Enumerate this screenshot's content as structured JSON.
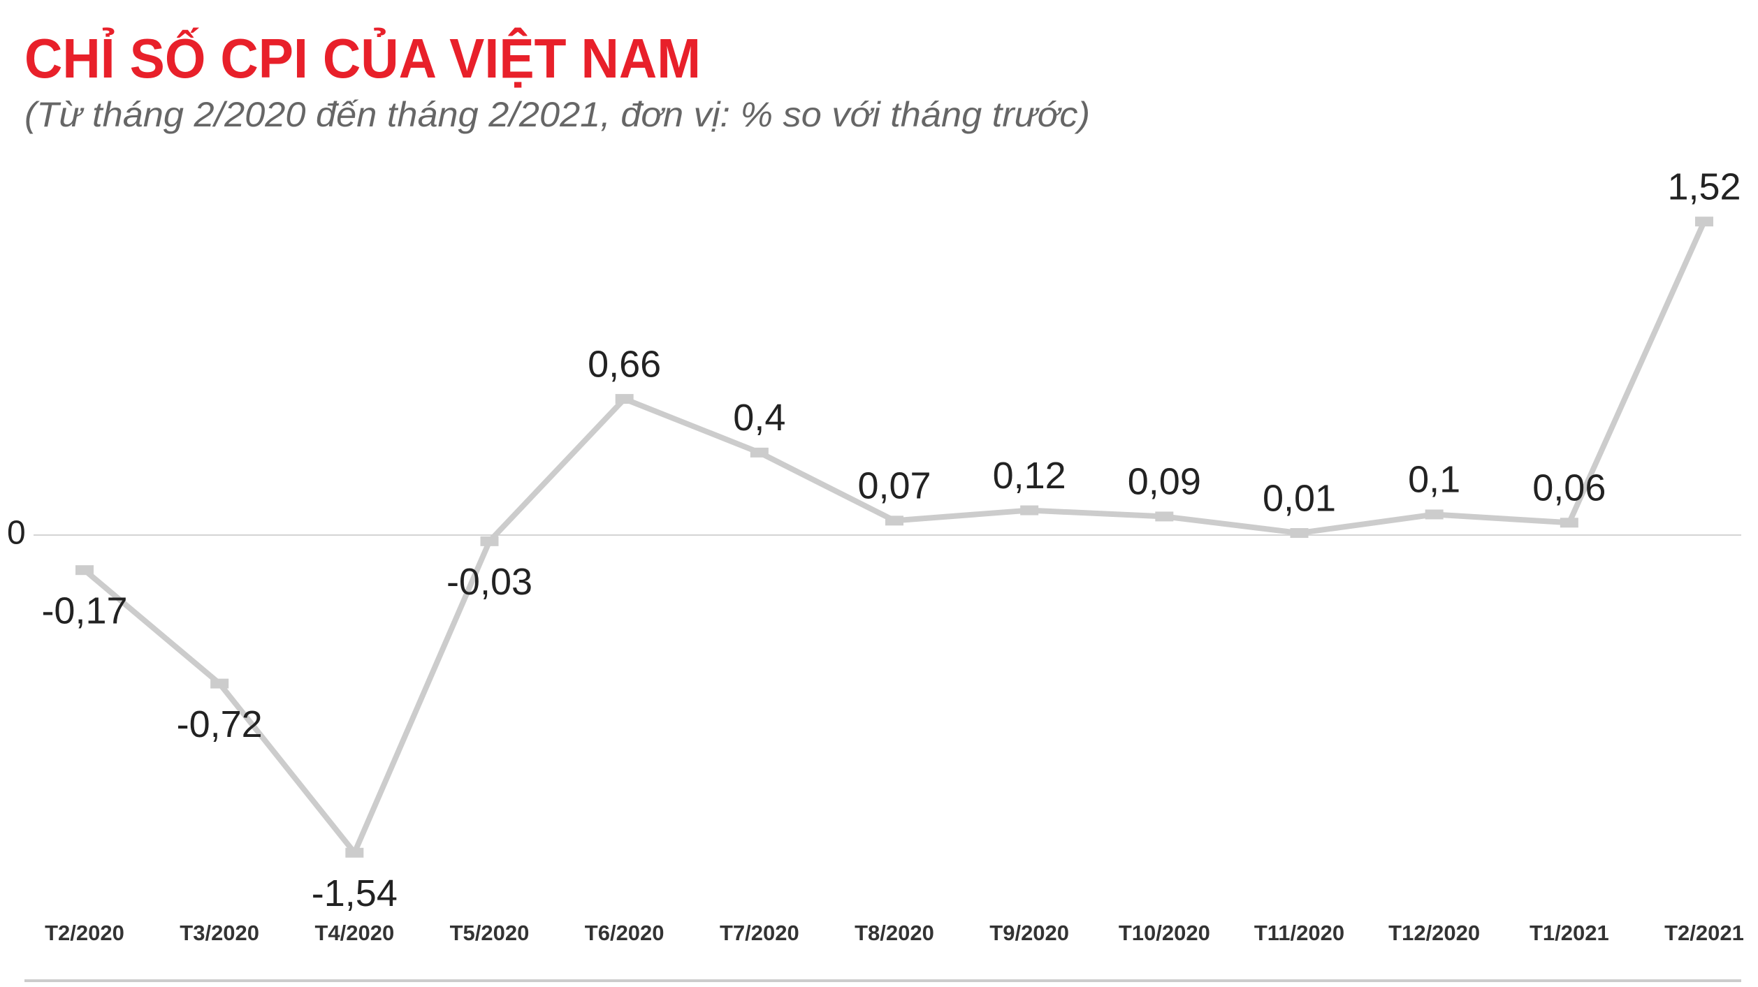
{
  "chart_data": {
    "type": "line",
    "title": "CHỈ SỐ CPI CỦA VIỆT NAM",
    "subtitle": "(Từ tháng 2/2020 đến tháng 2/2021, đơn vị: % so với tháng trước)",
    "categories": [
      "T2/2020",
      "T3/2020",
      "T4/2020",
      "T5/2020",
      "T6/2020",
      "T7/2020",
      "T8/2020",
      "T9/2020",
      "T10/2020",
      "T11/2020",
      "T12/2020",
      "T1/2021",
      "T2/2021"
    ],
    "series": [
      {
        "color": "#cccccc",
        "values": [
          -0.17,
          -0.72,
          -1.54,
          -0.03,
          0.66,
          0.4,
          0.07,
          0.12,
          0.09,
          0.01,
          0.1,
          0.06,
          1.52
        ],
        "value_labels": [
          "-0,17",
          "-0,72",
          "-1,54",
          "-0,03",
          "0,66",
          "0,4",
          "0,07",
          "0,12",
          "0,09",
          "0,01",
          "0,1",
          "0,06",
          "1,52"
        ]
      }
    ],
    "ylim": [
      -1.7,
      1.7
    ],
    "yticks": [
      0
    ]
  }
}
